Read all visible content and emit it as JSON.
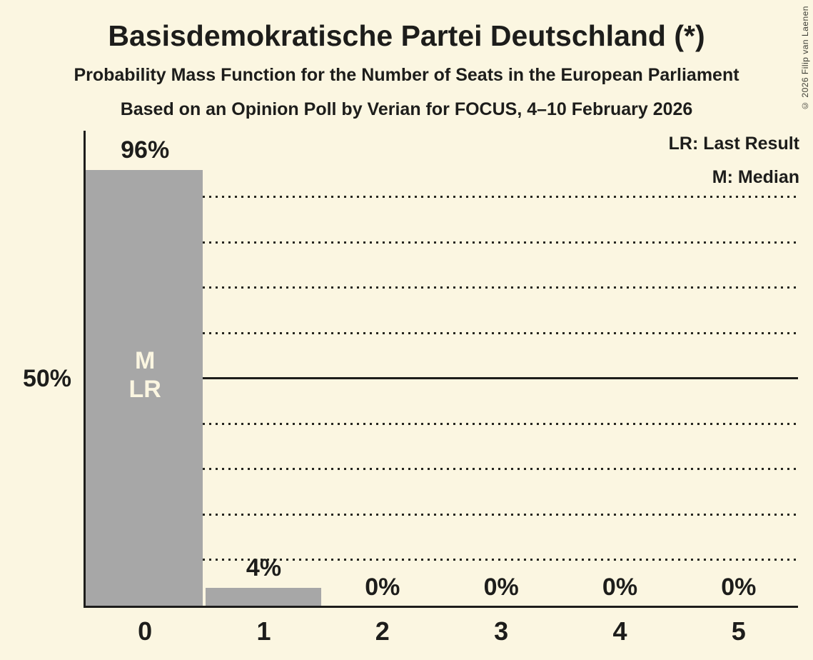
{
  "header": {
    "title": "Basisdemokratische Partei Deutschland (*)",
    "subtitle1": "Probability Mass Function for the Number of Seats in the European Parliament",
    "subtitle2": "Based on an Opinion Poll by Verian for FOCUS, 4–10 February 2026",
    "copyright": "© 2026 Filip van Laenen"
  },
  "legend": {
    "last_result": "LR: Last Result",
    "median": "M: Median"
  },
  "y_axis": {
    "label": "50%"
  },
  "annotations": {
    "median_label": "M",
    "last_result_label": "LR",
    "annotated_seat": 0
  },
  "colors": {
    "background": "#FBF6E1",
    "bar": "#A7A7A7",
    "ink": "#1D1D1B",
    "bar_text": "#FBF6E1"
  },
  "chart_data": {
    "type": "bar",
    "title": "Basisdemokratische Partei Deutschland (*)",
    "xlabel": "Number of Seats",
    "ylabel": "Probability",
    "categories": [
      "0",
      "1",
      "2",
      "3",
      "4",
      "5"
    ],
    "values": [
      96,
      4,
      0,
      0,
      0,
      0
    ],
    "value_labels": [
      "96%",
      "4%",
      "0%",
      "0%",
      "0%",
      "0%"
    ],
    "ylim": [
      0,
      104.7
    ],
    "gridlines_pct": [
      10,
      20,
      30,
      40,
      50,
      60,
      70,
      80,
      90
    ],
    "solid_gridline_pct": 50,
    "grid": "dotted-horizontal",
    "legend_position": "top-right",
    "median_seats": 0,
    "last_result_seats": 0
  }
}
